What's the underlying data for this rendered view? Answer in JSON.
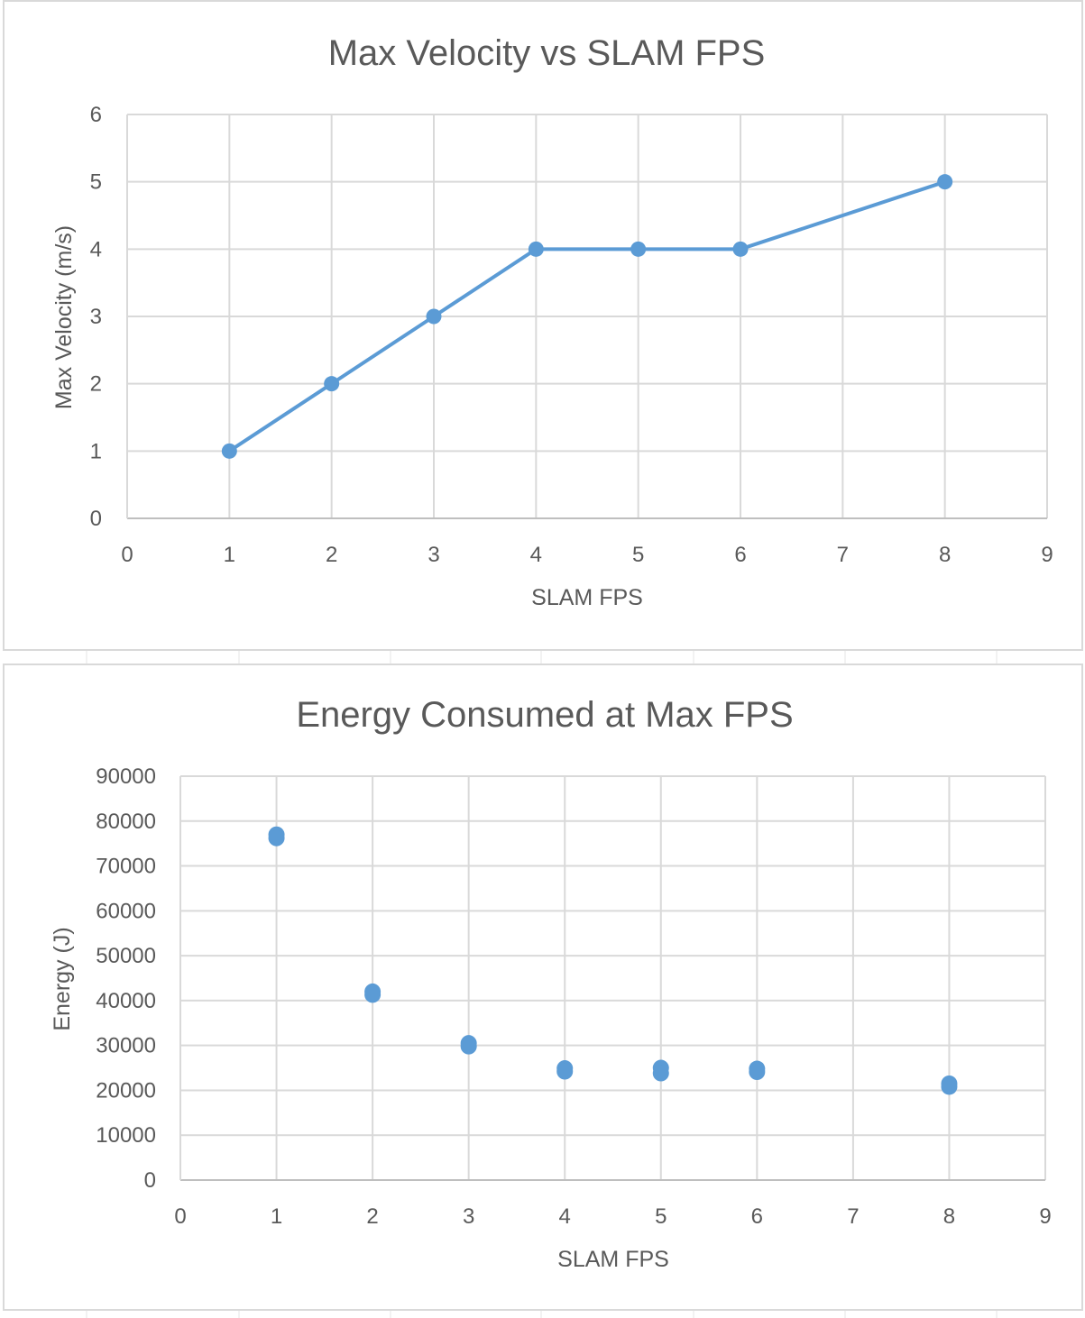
{
  "chart_data": [
    {
      "type": "line",
      "title": "Max Velocity vs SLAM FPS",
      "xlabel": "SLAM FPS",
      "ylabel": "Max Velocity (m/s)",
      "xlim": [
        0,
        9
      ],
      "ylim": [
        0,
        6
      ],
      "xticks": [
        "0",
        "1",
        "2",
        "3",
        "4",
        "5",
        "6",
        "7",
        "8",
        "9"
      ],
      "yticks": [
        "0",
        "1",
        "2",
        "3",
        "4",
        "5",
        "6"
      ],
      "grid": true,
      "legend": "none",
      "color": "#5b9bd5",
      "series": [
        {
          "x": [
            1,
            2,
            3,
            4,
            5,
            6,
            8
          ],
          "y": [
            1,
            2,
            3,
            4,
            4,
            4,
            5
          ]
        }
      ]
    },
    {
      "type": "scatter",
      "title": "Energy Consumed at Max FPS",
      "xlabel": "SLAM FPS",
      "ylabel": "Energy (J)",
      "xlim": [
        0,
        9
      ],
      "ylim": [
        0,
        90000
      ],
      "xticks": [
        "0",
        "1",
        "2",
        "3",
        "4",
        "5",
        "6",
        "7",
        "8",
        "9"
      ],
      "yticks": [
        "0",
        "10000",
        "20000",
        "30000",
        "40000",
        "50000",
        "60000",
        "70000",
        "80000",
        "90000"
      ],
      "grid": true,
      "legend": "none",
      "color": "#5b9bd5",
      "series": [
        {
          "x": [
            1,
            1,
            2,
            2,
            3,
            3,
            4,
            4,
            5,
            5,
            6,
            6,
            8,
            8
          ],
          "y": [
            77000,
            76200,
            42000,
            41300,
            30500,
            29800,
            24900,
            24200,
            25000,
            23800,
            24800,
            24100,
            21500,
            20800
          ]
        }
      ]
    }
  ]
}
